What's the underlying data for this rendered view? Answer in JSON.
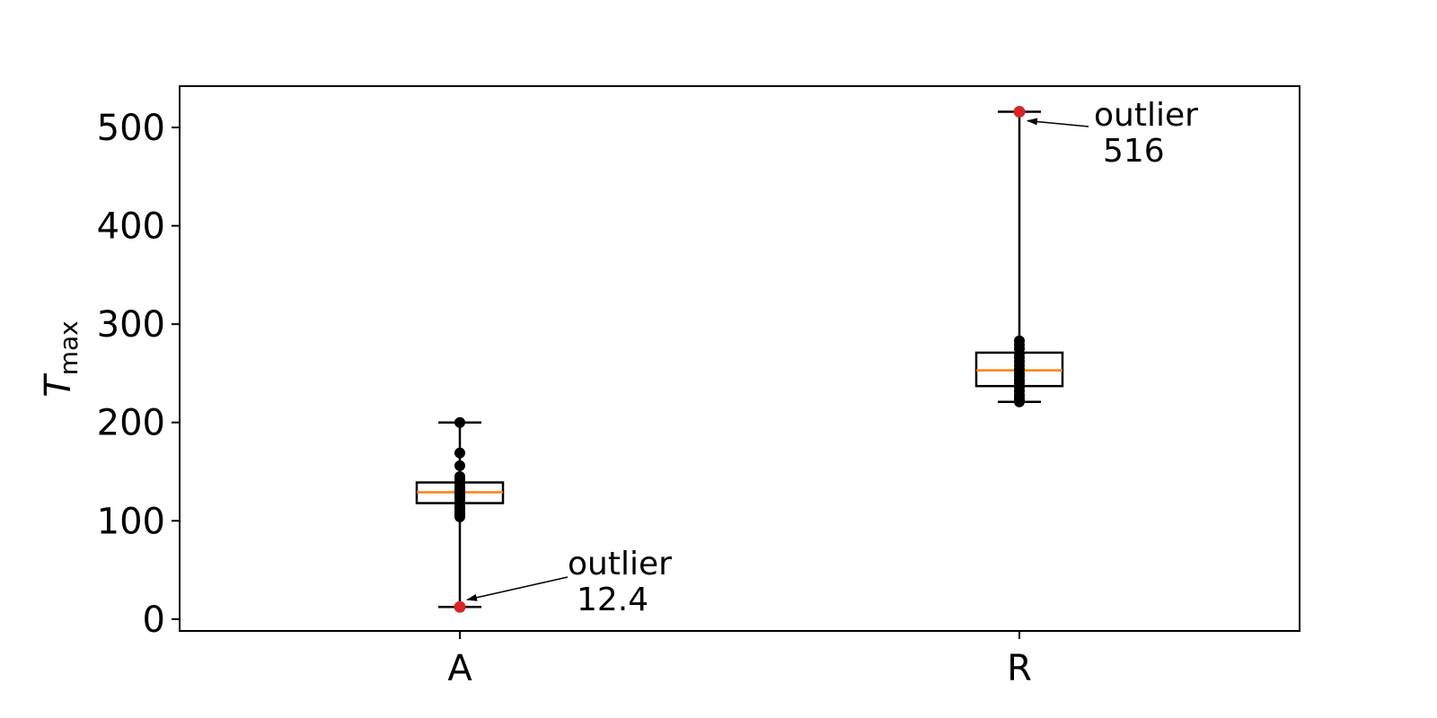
{
  "chart_data": {
    "type": "box",
    "ylabel": {
      "main": "T",
      "sub": "max"
    },
    "ylim": [
      -12,
      542
    ],
    "yticks": [
      0,
      100,
      200,
      300,
      400,
      500
    ],
    "categories": [
      "A",
      "R"
    ],
    "grid": false,
    "boxes": [
      {
        "category": "A",
        "whisker_low": 12.4,
        "q1": 118,
        "median": 129,
        "q3": 139,
        "whisker_high": 200,
        "points": [
          200,
          169,
          156,
          145,
          142,
          138,
          135,
          132,
          130,
          128,
          126,
          124,
          122,
          119,
          116,
          113,
          111,
          108,
          106,
          104
        ],
        "outlier": {
          "value": 12.4,
          "label": [
            "outlier",
            "12.4"
          ]
        }
      },
      {
        "category": "R",
        "whisker_low": 221,
        "q1": 237,
        "median": 253,
        "q3": 271,
        "whisker_high": 516,
        "points": [
          283,
          279,
          275,
          270,
          266,
          262,
          258,
          254,
          250,
          247,
          243,
          240,
          236,
          232,
          228,
          225,
          222,
          221
        ],
        "outlier": {
          "value": 516,
          "label": [
            "outlier",
            "516"
          ]
        }
      }
    ],
    "colors": {
      "median": "#ff7f0e",
      "outlier": "#d62728",
      "point": "#000000",
      "box": "#000000"
    }
  }
}
